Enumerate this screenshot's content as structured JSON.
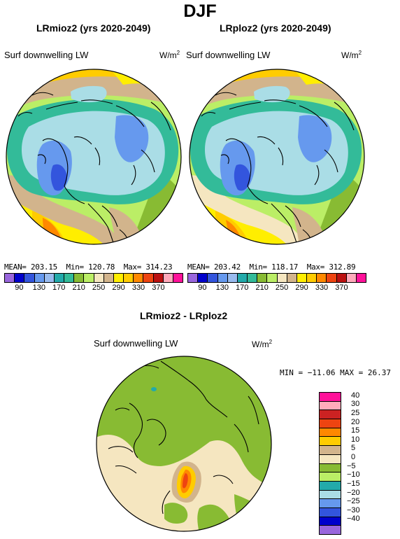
{
  "title": "DJF",
  "panels": [
    {
      "title": "LRmioz2 (yrs 2020-2049)",
      "variable": "Surf downwelling LW",
      "units_base": "W/m",
      "units_exp": "2",
      "mean_label": "MEAN=",
      "mean": "203.15",
      "min_label": "Min=",
      "min": "120.78",
      "max_label": "Max=",
      "max": "314.23"
    },
    {
      "title": "LRploz2 (yrs 2020-2049)",
      "variable": "Surf downwelling LW",
      "units_base": "W/m",
      "units_exp": "2",
      "mean_label": "MEAN=",
      "mean": "203.42",
      "min_label": "Min=",
      "min": "118.17",
      "max_label": "Max=",
      "max": "312.89"
    }
  ],
  "diff_panel": {
    "title": "LRmioz2 - LRploz2",
    "variable": "Surf downwelling LW",
    "units_base": "W/m",
    "units_exp": "2",
    "stats": "MIN = −11.06 MAX =  26.37"
  },
  "colorbar_main": {
    "colors": [
      "#9966dd",
      "#0000cc",
      "#3355dd",
      "#6699ee",
      "#99bbee",
      "#22aaaa",
      "#33bb99",
      "#88bb33",
      "#bbee66",
      "#f5e6c0",
      "#d2b48c",
      "#ffee00",
      "#ffcc00",
      "#ff8800",
      "#ee4411",
      "#bb1111",
      "#ffaabb",
      "#ff1199"
    ],
    "labels": [
      "90",
      "130",
      "170",
      "210",
      "250",
      "290",
      "330",
      "370"
    ]
  },
  "colorbar_diff": {
    "colors": [
      "#ff1199",
      "#ffaabb",
      "#cc2222",
      "#ee4411",
      "#ff8800",
      "#ffcc00",
      "#d2b48c",
      "#f5e6c0",
      "#88bb33",
      "#bbee66",
      "#22aaaa",
      "#aadde6",
      "#6699ee",
      "#3355dd",
      "#0000cc",
      "#9966dd"
    ],
    "labels": [
      "40",
      "30",
      "25",
      "20",
      "15",
      "10",
      "5",
      "0",
      "−5",
      "−10",
      "−15",
      "−20",
      "−25",
      "−30",
      "−40"
    ]
  }
}
